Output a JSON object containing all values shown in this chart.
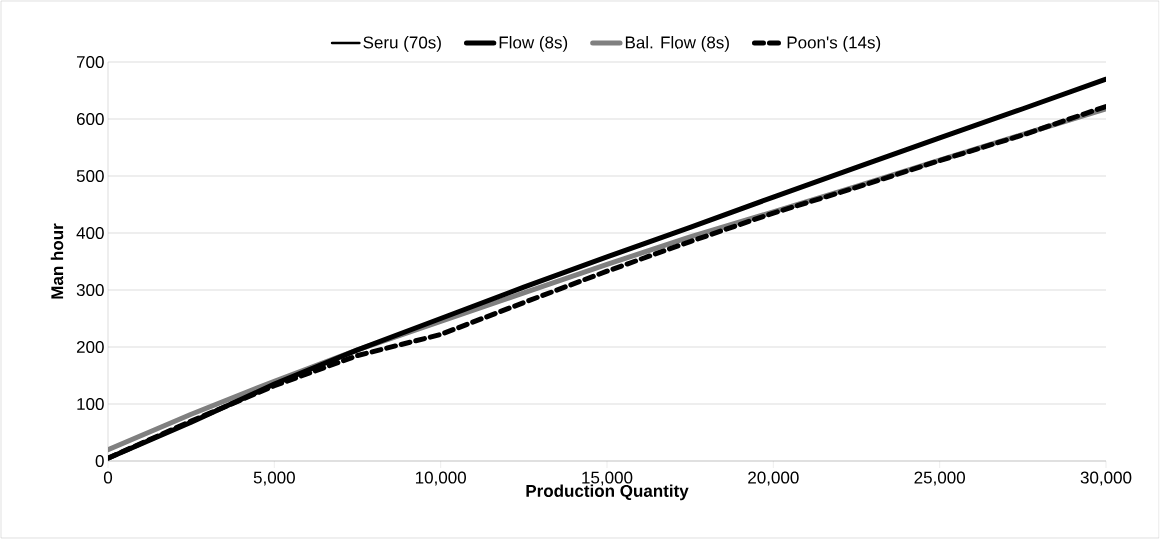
{
  "chart_data": {
    "type": "line",
    "xlabel": "Production Quantity",
    "ylabel": "Man hour",
    "x": [
      0,
      2500,
      5000,
      7500,
      10000,
      12500,
      15000,
      17500,
      20000,
      22500,
      25000,
      27500,
      30000
    ],
    "series": [
      {
        "name": "Seru (70s)",
        "color": "#000000",
        "line_style": "solid",
        "values": [
          null,
          null,
          null,
          null,
          null,
          null,
          null,
          null,
          null,
          null,
          null,
          null,
          null
        ]
      },
      {
        "name": "Flow (8s)",
        "color": "#000000",
        "line_style": "solid",
        "values": [
          5,
          68,
          135,
          195,
          250,
          305,
          358,
          410,
          463,
          515,
          567,
          618,
          670
        ]
      },
      {
        "name": "Bal. Flow (8s)",
        "color": "#808080",
        "line_style": "solid",
        "values": [
          20,
          82,
          140,
          195,
          245,
          295,
          345,
          393,
          437,
          482,
          528,
          573,
          618
        ]
      },
      {
        "name": "Poon's (14s)",
        "color": "#000000",
        "line_style": "dashed",
        "values": [
          5,
          70,
          132,
          185,
          222,
          278,
          333,
          385,
          435,
          480,
          527,
          572,
          622
        ]
      }
    ],
    "xlim": [
      0,
      30000
    ],
    "ylim": [
      0,
      700
    ],
    "xticks": [
      {
        "value": 0,
        "label": "0"
      },
      {
        "value": 5000,
        "label": "5,000"
      },
      {
        "value": 10000,
        "label": "10,000"
      },
      {
        "value": 15000,
        "label": "15,000"
      },
      {
        "value": 20000,
        "label": "20,000"
      },
      {
        "value": 25000,
        "label": "25,000"
      },
      {
        "value": 30000,
        "label": "30,000"
      }
    ],
    "yticks": [
      0,
      100,
      200,
      300,
      400,
      500,
      600,
      700
    ],
    "grid": "y",
    "legend": "top",
    "marker": "none"
  }
}
